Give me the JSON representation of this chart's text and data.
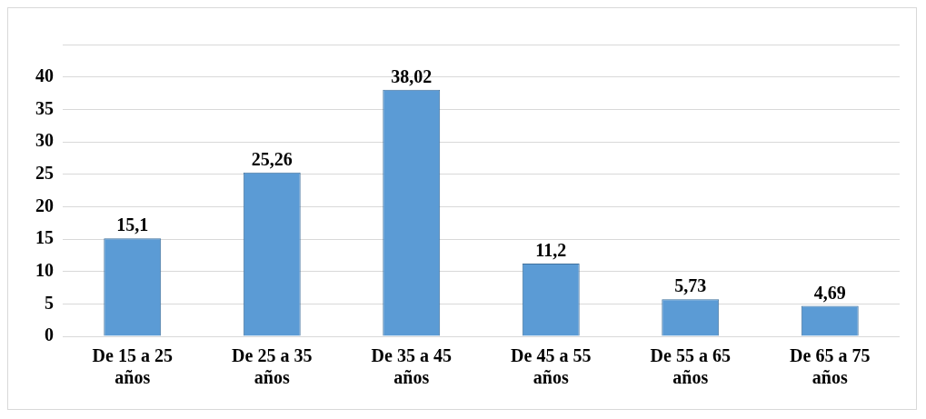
{
  "chart_data": {
    "type": "bar",
    "categories": [
      "De 15 a 25 años",
      "De 25 a 35 años",
      "De 35 a 45 años",
      "De 45 a 55 años",
      "De 55 a 65 años",
      "De 65 a 75 años"
    ],
    "values": [
      15.1,
      25.26,
      38.02,
      11.2,
      5.73,
      4.69
    ],
    "color": "#5b9bd5",
    "ylim": [
      0,
      45
    ],
    "yticks": [
      0,
      5,
      10,
      15,
      20,
      25,
      30,
      35,
      40,
      {
        "value": 45,
        "label": null
      }
    ],
    "value_labels": [
      "15,1",
      "25,26",
      "38,02",
      "11,2",
      "5,73",
      "4,69"
    ],
    "grid": "y",
    "legend": false
  }
}
